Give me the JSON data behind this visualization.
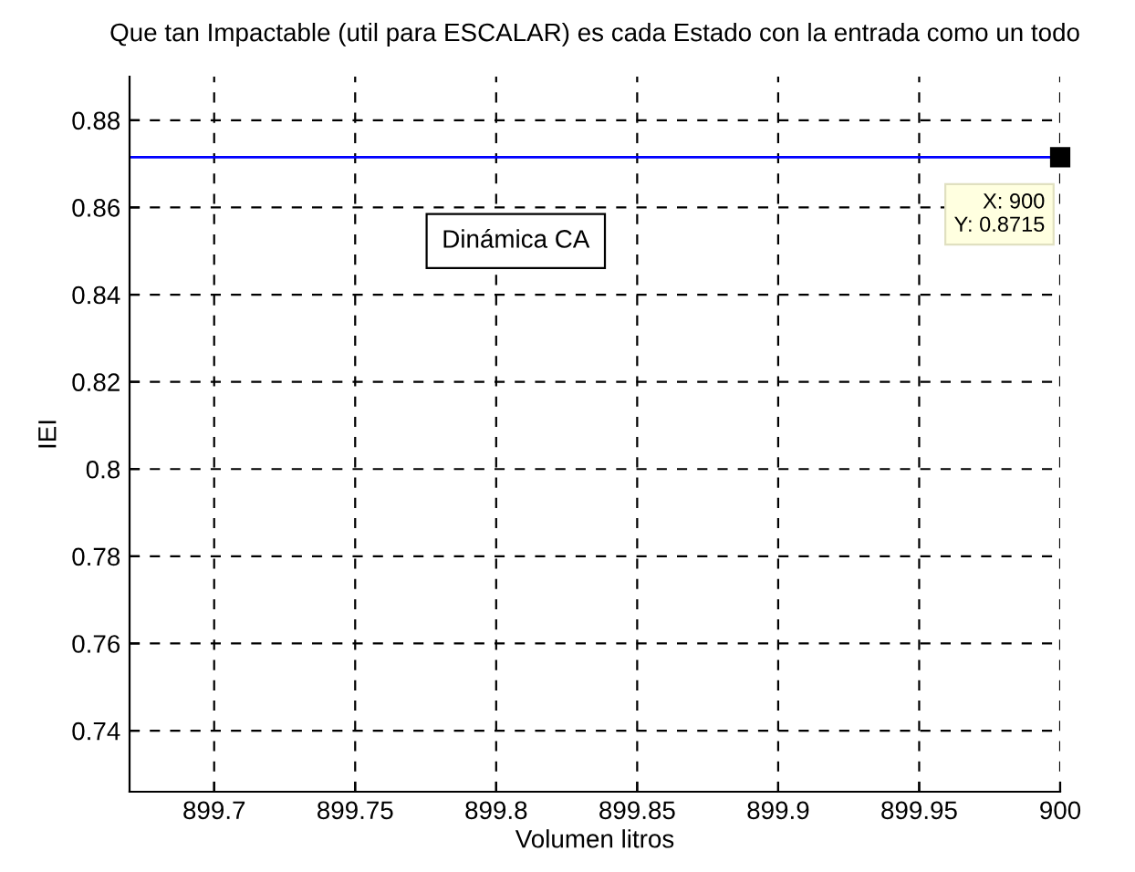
{
  "chart_data": {
    "type": "line",
    "title": "Que tan Impactable (util para ESCALAR) es cada Estado con la entrada como un todo",
    "xlabel": "Volumen litros",
    "ylabel": "IEI",
    "x": [
      899.67,
      900
    ],
    "series": [
      {
        "color": "#0000ff",
        "values": [
          0.8715,
          0.8715
        ]
      }
    ],
    "xlim": [
      899.67,
      900
    ],
    "xticks": [
      899.7,
      899.75,
      899.8,
      899.85,
      899.9,
      899.95,
      900
    ],
    "ylim": [
      0.726,
      0.89
    ],
    "yticks": [
      0.74,
      0.76,
      0.78,
      0.8,
      0.82,
      0.84,
      0.86,
      0.88
    ],
    "grid": true,
    "line_style": "solid",
    "annotations": [
      "Dinámica CA",
      {
        "text": "X: 900\nY: 0.8715",
        "x": 900,
        "y": 0.8715
      }
    ]
  }
}
